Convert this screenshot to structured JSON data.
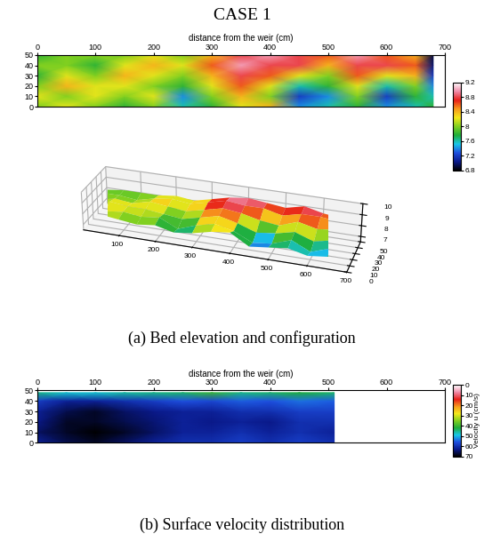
{
  "title": "CASE 1",
  "chart_data": [
    {
      "type": "heatmap",
      "x_label": "distance from the weir (cm)",
      "x": [
        0,
        50,
        100,
        150,
        200,
        250,
        300,
        350,
        400,
        450,
        500,
        550,
        600,
        650,
        680
      ],
      "y": [
        0,
        10,
        20,
        30,
        40,
        50
      ],
      "cells": [
        [
          8.0,
          8.2,
          8.0,
          7.8,
          8.0,
          7.6,
          7.8,
          8.2,
          8.4,
          7.4,
          7.6,
          7.8,
          7.4,
          7.6,
          7.8
        ],
        [
          8.2,
          8.0,
          8.2,
          8.0,
          8.2,
          7.4,
          8.0,
          8.4,
          8.0,
          7.2,
          7.4,
          8.0,
          7.2,
          7.8,
          7.6
        ],
        [
          8.0,
          8.4,
          8.2,
          8.2,
          8.0,
          7.8,
          8.2,
          8.6,
          8.2,
          7.6,
          7.8,
          8.2,
          7.6,
          8.0,
          7.4
        ],
        [
          7.8,
          8.2,
          8.0,
          8.4,
          8.2,
          8.0,
          8.4,
          8.8,
          8.6,
          8.2,
          8.0,
          8.6,
          8.2,
          8.4,
          7.2
        ],
        [
          8.0,
          8.0,
          7.8,
          8.2,
          8.4,
          8.2,
          8.6,
          9.0,
          8.8,
          8.8,
          8.4,
          8.8,
          8.8,
          8.6,
          7.0
        ],
        [
          7.8,
          8.0,
          8.0,
          8.0,
          8.2,
          8.0,
          8.4,
          8.8,
          9.0,
          8.8,
          8.6,
          9.0,
          8.6,
          8.4,
          6.9
        ]
      ],
      "xlim": [
        0,
        700
      ],
      "xticks": [
        0,
        100,
        200,
        300,
        400,
        500,
        600,
        700
      ],
      "ylim": [
        0,
        50
      ],
      "yticks": [
        0,
        10,
        20,
        30,
        40,
        50
      ],
      "colorbar": {
        "range": [
          6.8,
          9.2
        ],
        "ticks": [
          6.8,
          7.2,
          7.6,
          8,
          8.4,
          8.8,
          9.2
        ]
      }
    },
    {
      "type": "surface",
      "caption": "(a) Bed elevation and configuration",
      "xlim": [
        0,
        700
      ],
      "xticks": [
        100,
        200,
        300,
        400,
        500,
        600,
        700
      ],
      "ylim": [
        0,
        50
      ],
      "yticks": [
        0,
        10,
        20,
        30,
        40,
        50
      ],
      "zlim": [
        6.5,
        10
      ],
      "zticks": [
        7,
        8,
        9,
        10
      ]
    },
    {
      "type": "heatmap",
      "caption": "(b) Surface velocity distribution",
      "x_label": "distance from the weir (cm)",
      "x": [
        0,
        50,
        100,
        150,
        200,
        250,
        300,
        350,
        400,
        450,
        510
      ],
      "y": [
        0,
        10,
        20,
        30,
        40,
        48
      ],
      "cells": [
        [
          62,
          66,
          68,
          65,
          62,
          60,
          60,
          58,
          60,
          58,
          60
        ],
        [
          65,
          68,
          70,
          68,
          65,
          62,
          62,
          60,
          62,
          60,
          62
        ],
        [
          63,
          68,
          68,
          66,
          64,
          62,
          63,
          62,
          63,
          60,
          60
        ],
        [
          62,
          66,
          68,
          65,
          63,
          62,
          62,
          60,
          60,
          58,
          58
        ],
        [
          58,
          62,
          62,
          60,
          58,
          56,
          57,
          55,
          56,
          54,
          55
        ],
        [
          45,
          48,
          48,
          46,
          45,
          44,
          40,
          45,
          44,
          42,
          44
        ]
      ],
      "xlim": [
        0,
        700
      ],
      "xticks": [
        0,
        100,
        200,
        300,
        400,
        500,
        600,
        700
      ],
      "ylim": [
        0,
        50
      ],
      "yticks": [
        0,
        10,
        20,
        30,
        40,
        50
      ],
      "colorbar": {
        "label": "Velocity u (cm/s)",
        "range": [
          0,
          70
        ],
        "ticks": [
          0,
          10,
          20,
          30,
          40,
          50,
          60,
          70
        ]
      }
    }
  ]
}
